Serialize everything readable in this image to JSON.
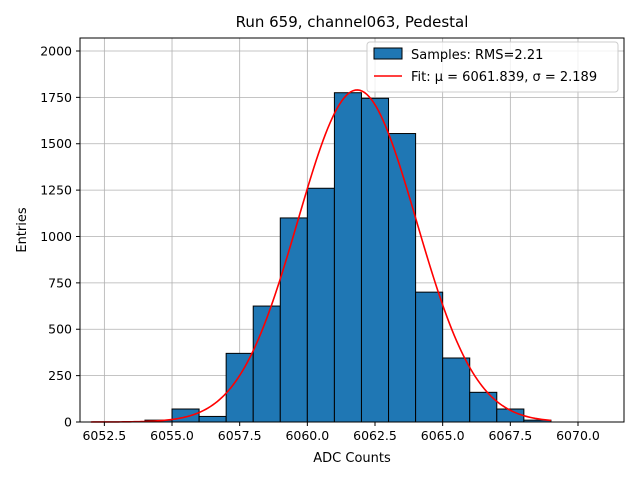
{
  "chart_data": {
    "type": "bar",
    "title": "Run 659, channel063, Pedestal",
    "xlabel": "ADC Counts",
    "ylabel": "Entries",
    "xlim": [
      6051.6,
      6071.7
    ],
    "ylim": [
      0,
      2070
    ],
    "grid": true,
    "legend_position": "top-right",
    "x_ticks": [
      6052.5,
      6055.0,
      6057.5,
      6060.0,
      6062.5,
      6065.0,
      6067.5,
      6070.0
    ],
    "x_tick_labels": [
      "6052.5",
      "6055.0",
      "6057.5",
      "6060.0",
      "6062.5",
      "6065.0",
      "6067.5",
      "6070.0"
    ],
    "y_ticks": [
      0,
      250,
      500,
      750,
      1000,
      1250,
      1500,
      1750,
      2000
    ],
    "y_tick_labels": [
      "0",
      "250",
      "500",
      "750",
      "1000",
      "1250",
      "1500",
      "1750",
      "2000"
    ],
    "histogram": {
      "name": "Samples: RMS=2.21",
      "color": "#1f77b4",
      "edge_color": "#000000",
      "bin_edges": [
        6054,
        6055,
        6056,
        6057,
        6058,
        6059,
        6060,
        6061,
        6062,
        6063,
        6064,
        6065,
        6066,
        6067,
        6068,
        6069
      ],
      "counts": [
        10,
        70,
        30,
        370,
        625,
        1100,
        1260,
        1775,
        1745,
        1555,
        700,
        345,
        160,
        70,
        10
      ]
    },
    "fit": {
      "name": "Fit: μ = 6061.839, σ = 2.189",
      "color": "#ff0000",
      "mu": 6061.839,
      "sigma": 2.189,
      "amplitude": 1790,
      "x_range": [
        6052.0,
        6069.0
      ]
    }
  }
}
